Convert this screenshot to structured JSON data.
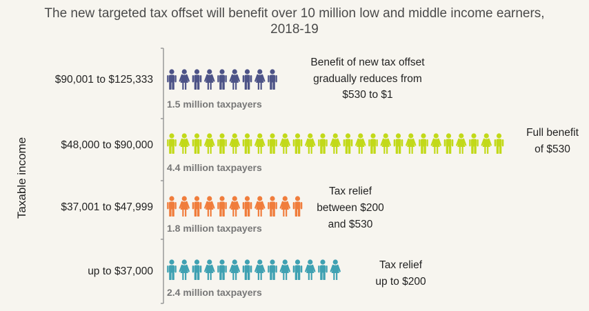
{
  "chart_data": {
    "type": "pictograph",
    "title": "The new targeted tax offset will benefit over 10 million low and middle income earners, 2018-19",
    "title_lines": [
      "The new targeted tax offset will benefit over 10 million low and middle income earners,",
      "2018-19"
    ],
    "ylabel": "Taxable income",
    "legend": "none",
    "rows": [
      {
        "category": "$90,001 to $125,333",
        "value_millions": 1.5,
        "icon_count": 9,
        "label": "1.5 million taxpayers",
        "color": "#4d5387",
        "note_lines": [
          "Benefit of new tax offset",
          "gradually reduces from",
          "$530 to $1"
        ]
      },
      {
        "category": "$48,000 to $90,000",
        "value_millions": 4.4,
        "icon_count": 27,
        "label": "4.4 million taxpayers",
        "color": "#c2d919",
        "note_lines": [
          "Full benefit",
          "of $530"
        ]
      },
      {
        "category": "$37,001 to $47,999",
        "value_millions": 1.8,
        "icon_count": 11,
        "label": "1.8 million taxpayers",
        "color": "#f07d3c",
        "note_lines": [
          "Tax relief",
          "between $200",
          "and $530"
        ]
      },
      {
        "category": "up to $37,000",
        "value_millions": 2.4,
        "icon_count": 14,
        "label": "2.4 million taxpayers",
        "color": "#3fa1b2",
        "note_lines": [
          "Tax relief",
          "up to $200"
        ]
      }
    ],
    "axis_color": "#999999"
  }
}
